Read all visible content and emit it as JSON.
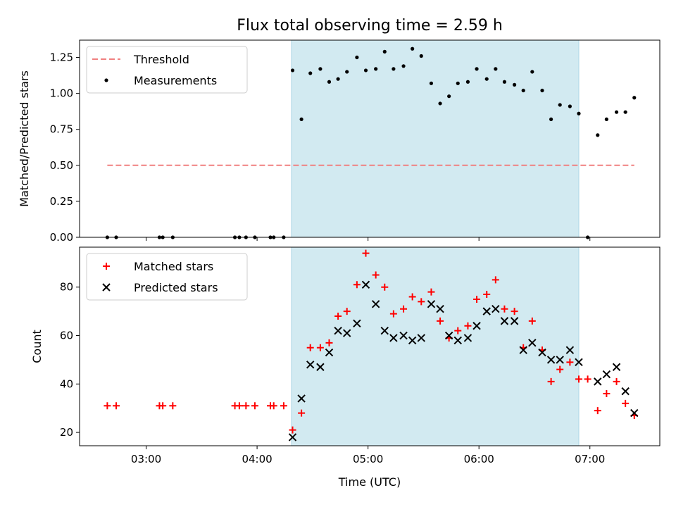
{
  "chart_data": {
    "title": "Flux total observing time = 2.59 h",
    "xlabel": "Time (UTC)",
    "x_unit": "hours UTC",
    "xlim": [
      2.4,
      7.63
    ],
    "x_ticks": [
      3,
      4,
      5,
      6,
      7
    ],
    "x_tick_labels": [
      "03:00",
      "04:00",
      "05:00",
      "06:00",
      "07:00"
    ],
    "shaded_interval": [
      4.31,
      6.9
    ],
    "shade_color": "#add8e6",
    "panels": [
      {
        "type": "scatter",
        "ylabel": "Matched/Predicted stars",
        "ylim": [
          0,
          1.37
        ],
        "y_ticks": [
          0,
          0.25,
          0.5,
          0.75,
          1.0,
          1.25
        ],
        "y_tick_labels": [
          "0.00",
          "0.25",
          "0.50",
          "0.75",
          "1.00",
          "1.25"
        ],
        "legend_position": "top-left",
        "series": [
          {
            "name": "Threshold",
            "kind": "dashed-line",
            "color": "#f08080",
            "x": [
              2.65,
              7.4
            ],
            "y": [
              0.5,
              0.5
            ]
          },
          {
            "name": "Measurements",
            "kind": "dot",
            "color": "#000000",
            "x": [
              2.65,
              2.73,
              3.12,
              3.15,
              3.24,
              3.8,
              3.84,
              3.9,
              3.98,
              4.12,
              4.15,
              4.24,
              4.32,
              4.4,
              4.48,
              4.57,
              4.65,
              4.73,
              4.81,
              4.9,
              4.98,
              5.07,
              5.15,
              5.23,
              5.32,
              5.4,
              5.48,
              5.57,
              5.65,
              5.73,
              5.81,
              5.9,
              5.98,
              6.07,
              6.15,
              6.23,
              6.32,
              6.4,
              6.48,
              6.57,
              6.65,
              6.73,
              6.82,
              6.9,
              6.98,
              7.07,
              7.15,
              7.24,
              7.32,
              7.4
            ],
            "y": [
              0,
              0,
              0,
              0,
              0,
              0,
              0,
              0,
              0,
              0,
              0,
              0,
              1.16,
              0.82,
              1.14,
              1.17,
              1.08,
              1.1,
              1.15,
              1.25,
              1.16,
              1.17,
              1.29,
              1.17,
              1.19,
              1.31,
              1.26,
              1.07,
              0.93,
              0.98,
              1.07,
              1.08,
              1.17,
              1.1,
              1.17,
              1.08,
              1.06,
              1.02,
              1.15,
              1.02,
              0.82,
              0.92,
              0.91,
              0.86,
              0.0,
              0.71,
              0.82,
              0.87,
              0.87,
              0.97
            ]
          }
        ]
      },
      {
        "type": "scatter",
        "ylabel": "Count",
        "ylim": [
          14.5,
          96.5
        ],
        "y_ticks": [
          20,
          40,
          60,
          80
        ],
        "y_tick_labels": [
          "20",
          "40",
          "60",
          "80"
        ],
        "legend_position": "top-left",
        "series": [
          {
            "name": "Matched stars",
            "kind": "plus",
            "color": "#ff0000",
            "x": [
              2.65,
              2.73,
              3.12,
              3.15,
              3.24,
              3.8,
              3.84,
              3.9,
              3.98,
              4.12,
              4.15,
              4.24,
              4.32,
              4.4,
              4.48,
              4.57,
              4.65,
              4.73,
              4.81,
              4.9,
              4.98,
              5.07,
              5.15,
              5.23,
              5.32,
              5.4,
              5.48,
              5.57,
              5.65,
              5.73,
              5.81,
              5.9,
              5.98,
              6.07,
              6.15,
              6.23,
              6.32,
              6.4,
              6.48,
              6.57,
              6.65,
              6.73,
              6.82,
              6.9,
              6.98,
              7.07,
              7.15,
              7.24,
              7.32,
              7.4
            ],
            "y": [
              31,
              31,
              31,
              31,
              31,
              31,
              31,
              31,
              31,
              31,
              31,
              31,
              21,
              28,
              55,
              55,
              57,
              68,
              70,
              81,
              94,
              85,
              80,
              69,
              71,
              76,
              74,
              78,
              66,
              59,
              62,
              64,
              75,
              77,
              83,
              71,
              70,
              55,
              66,
              54,
              41,
              46,
              49,
              42,
              42,
              29,
              36,
              41,
              32,
              27
            ]
          },
          {
            "name": "Predicted stars",
            "kind": "x",
            "color": "#000000",
            "x": [
              4.32,
              4.4,
              4.48,
              4.57,
              4.65,
              4.73,
              4.81,
              4.9,
              4.98,
              5.07,
              5.15,
              5.23,
              5.32,
              5.4,
              5.48,
              5.57,
              5.65,
              5.73,
              5.81,
              5.9,
              5.98,
              6.07,
              6.15,
              6.23,
              6.32,
              6.4,
              6.48,
              6.57,
              6.65,
              6.73,
              6.82,
              6.9,
              7.07,
              7.15,
              7.24,
              7.32,
              7.4
            ],
            "y": [
              18,
              34,
              48,
              47,
              53,
              62,
              61,
              65,
              81,
              73,
              62,
              59,
              60,
              58,
              59,
              73,
              71,
              60,
              58,
              59,
              64,
              70,
              71,
              66,
              66,
              54,
              57,
              53,
              50,
              50,
              54,
              49,
              41,
              44,
              47,
              37,
              28
            ]
          }
        ]
      }
    ]
  }
}
